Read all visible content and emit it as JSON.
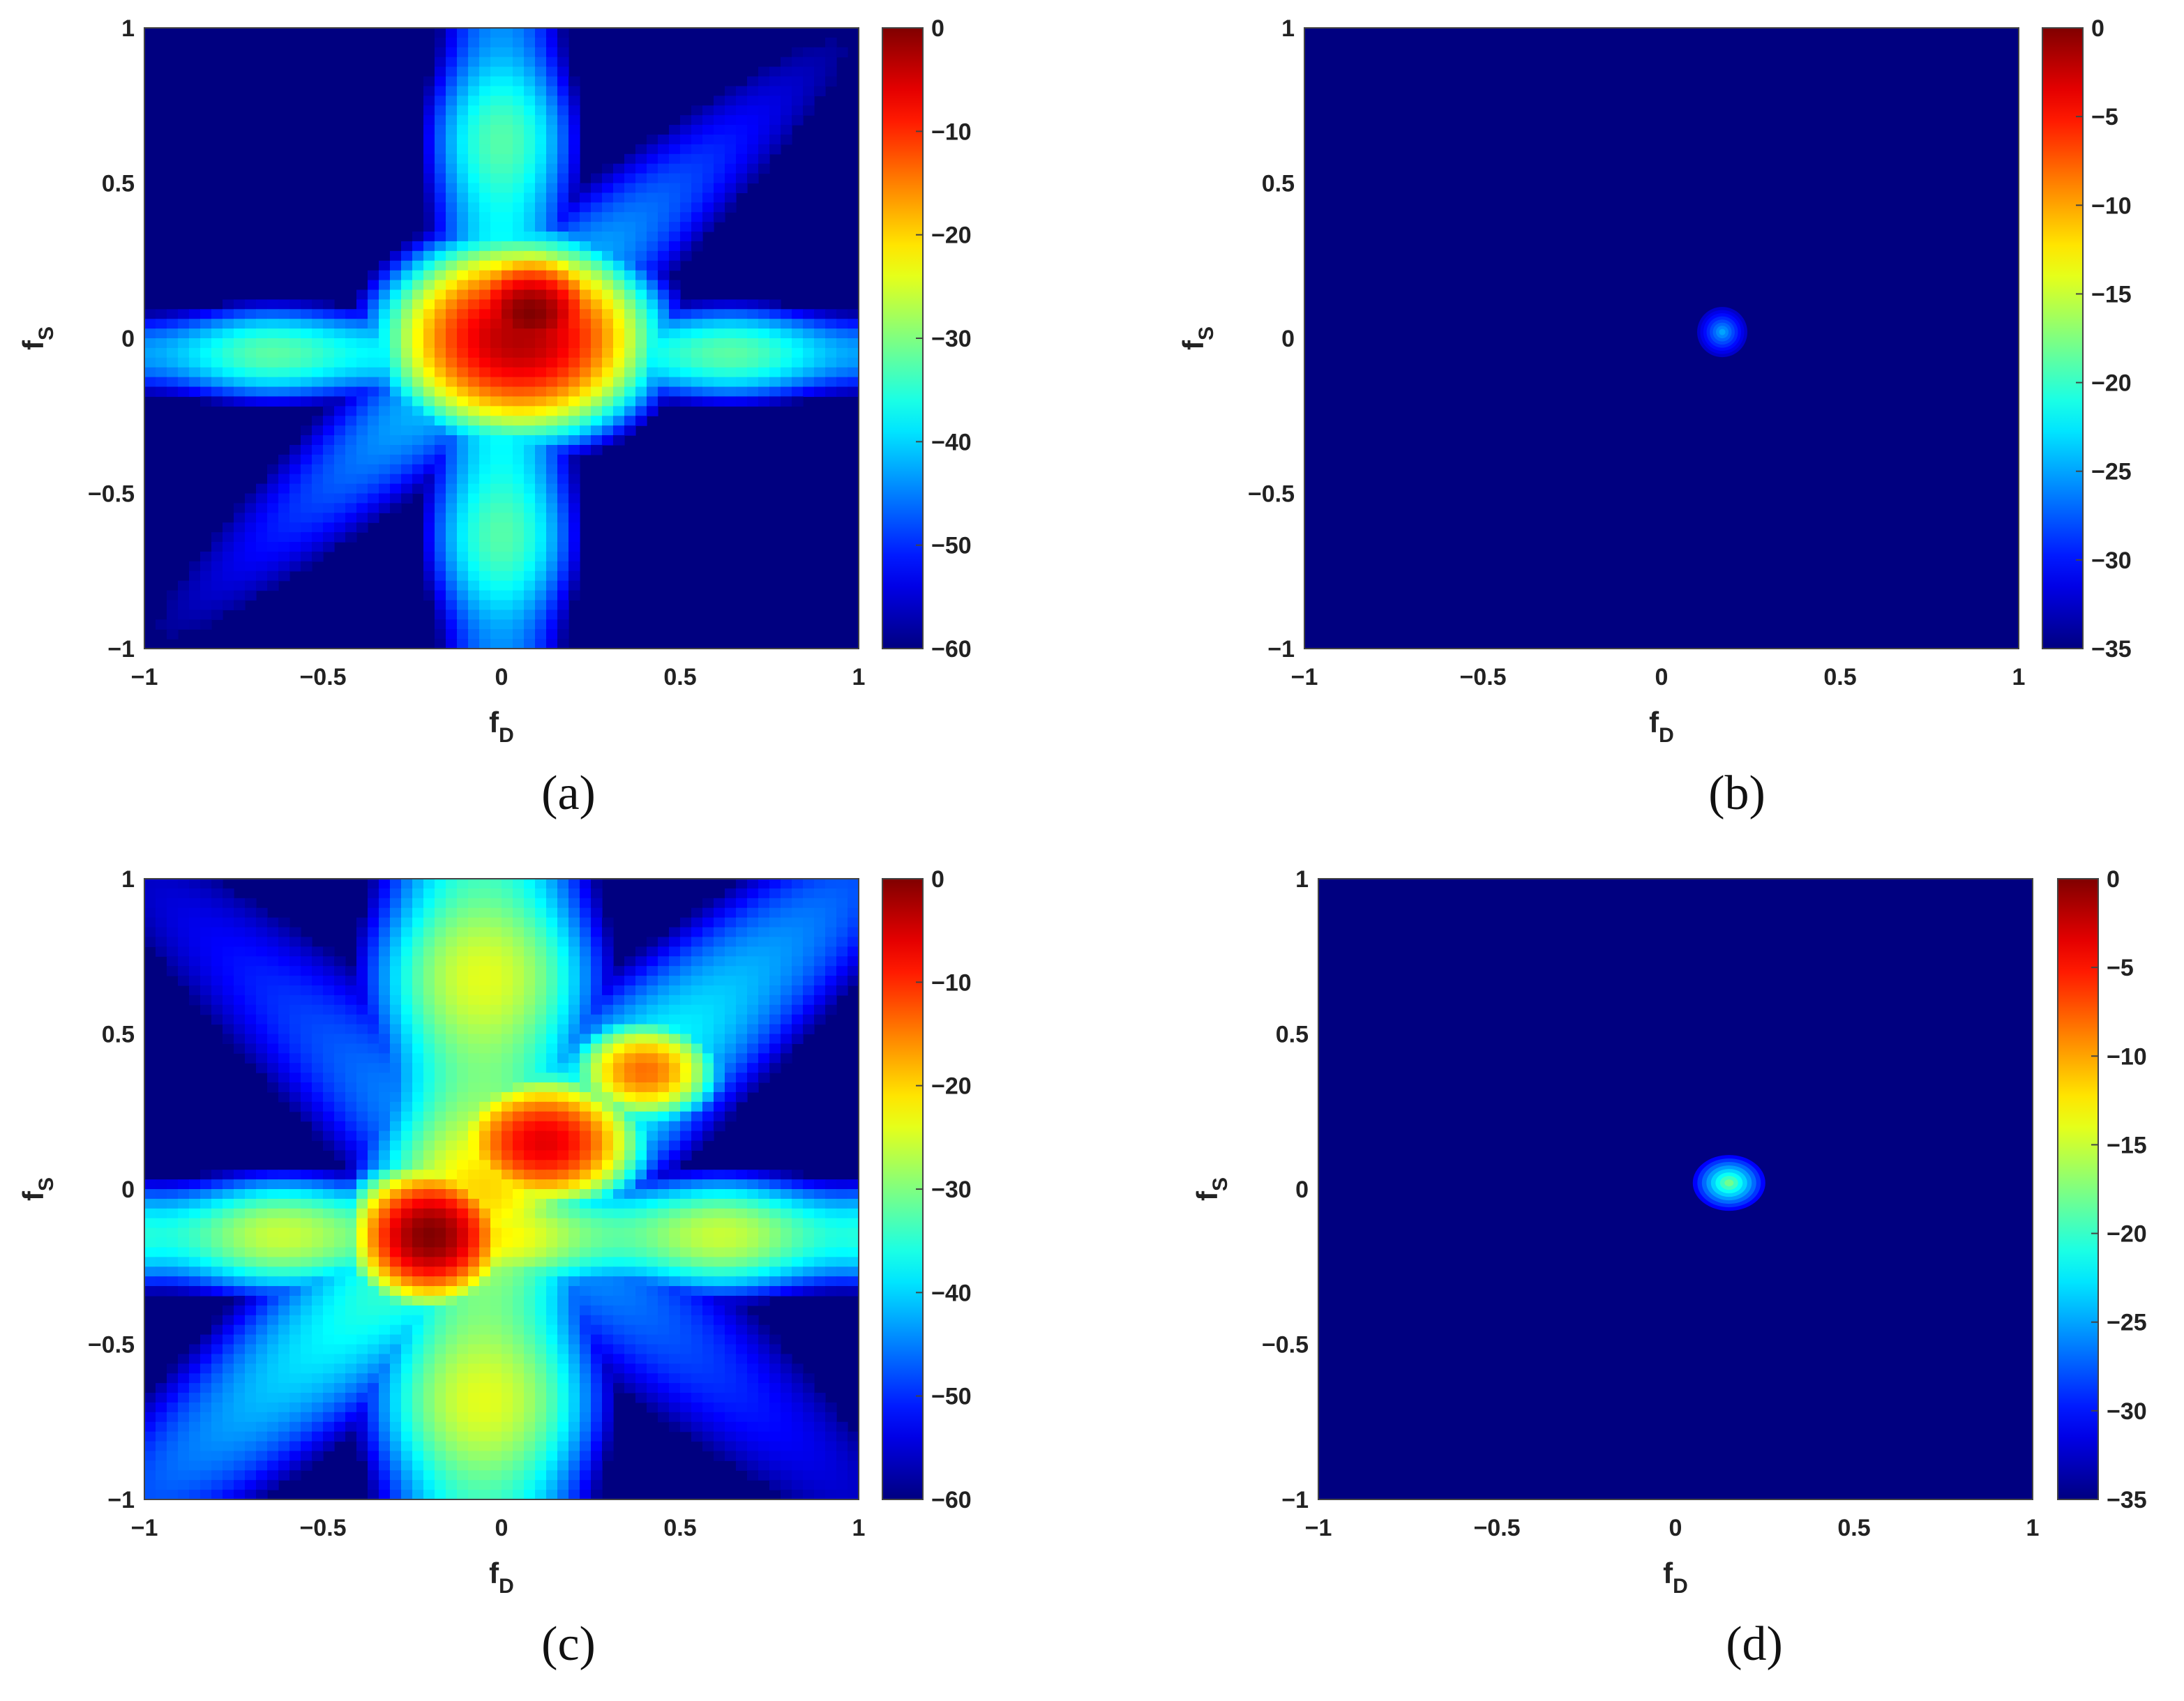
{
  "chart_data": [
    {
      "type": "heatmap",
      "caption": "(a)",
      "xlabel": "f",
      "xlabel_sub": "D",
      "ylabel": "f",
      "ylabel_sub": "S",
      "xlim": [
        -1,
        1
      ],
      "ylim": [
        -1,
        1
      ],
      "xticks": [
        "−1",
        "−0.5",
        "0",
        "0.5",
        "1"
      ],
      "yticks": [
        "1",
        "0.5",
        "0",
        "−0.5",
        "−1"
      ],
      "colorbar": {
        "min": -60,
        "max": 0,
        "ticks": [
          "0",
          "−10",
          "−20",
          "−30",
          "−40",
          "−50",
          "−60"
        ]
      },
      "colormap": "jet",
      "features": {
        "peak": {
          "x": 0.05,
          "y": 0.05,
          "value": 0
        },
        "ridges": "cross-shaped sidelobes along fD = 0 and fS = 0",
        "floor": -60
      }
    },
    {
      "type": "heatmap",
      "caption": "(b)",
      "xlabel": "f",
      "xlabel_sub": "D",
      "ylabel": "f",
      "ylabel_sub": "S",
      "xlim": [
        -1,
        1
      ],
      "ylim": [
        -1,
        1
      ],
      "xticks": [
        "−1",
        "−0.5",
        "0",
        "0.5",
        "1"
      ],
      "yticks": [
        "1",
        "0.5",
        "0",
        "−0.5",
        "−1"
      ],
      "colorbar": {
        "min": -35,
        "max": 0,
        "ticks": [
          "0",
          "−5",
          "−10",
          "−15",
          "−20",
          "−25",
          "−30",
          "−35"
        ]
      },
      "colormap": "jet",
      "features": {
        "peak": {
          "x": 0.17,
          "y": 0.02,
          "value": -25
        },
        "floor": -35
      }
    },
    {
      "type": "heatmap",
      "caption": "(c)",
      "xlabel": "f",
      "xlabel_sub": "D",
      "ylabel": "f",
      "ylabel_sub": "S",
      "xlim": [
        -1,
        1
      ],
      "ylim": [
        -1,
        1
      ],
      "xticks": [
        "−1",
        "−0.5",
        "0",
        "0.5",
        "1"
      ],
      "yticks": [
        "1",
        "0.5",
        "0",
        "−0.5",
        "−1"
      ],
      "colorbar": {
        "min": -60,
        "max": 0,
        "ticks": [
          "0",
          "−10",
          "−20",
          "−30",
          "−40",
          "−50",
          "−60"
        ]
      },
      "colormap": "jet",
      "features": {
        "peak": {
          "x": -0.2,
          "y": -0.15,
          "value": 0
        },
        "secondary": {
          "x": 0.15,
          "y": 0.15,
          "value": -8
        },
        "ridges": "broad cross-shaped sidelobes along fD = 0 and fS = 0",
        "floor": -60
      }
    },
    {
      "type": "heatmap",
      "caption": "(d)",
      "xlabel": "f",
      "xlabel_sub": "D",
      "ylabel": "f",
      "ylabel_sub": "S",
      "xlim": [
        -1,
        1
      ],
      "ylim": [
        -1,
        1
      ],
      "xticks": [
        "−1",
        "−0.5",
        "0",
        "0.5",
        "1"
      ],
      "yticks": [
        "1",
        "0.5",
        "0",
        "−0.5",
        "−1"
      ],
      "colorbar": {
        "min": -35,
        "max": 0,
        "ticks": [
          "0",
          "−5",
          "−10",
          "−15",
          "−20",
          "−25",
          "−30",
          "−35"
        ]
      },
      "colormap": "jet",
      "features": {
        "peak": {
          "x": 0.15,
          "y": 0.02,
          "value": -18
        },
        "floor": -35
      }
    }
  ]
}
